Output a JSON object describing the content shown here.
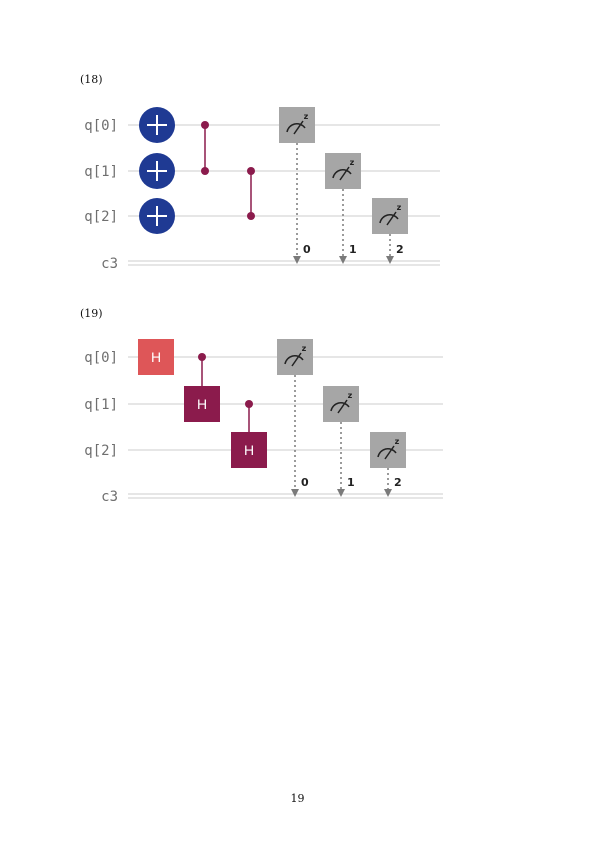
{
  "page_number": "19",
  "colors": {
    "wire": "#d7d7d7",
    "x_gate": "#1f3a93",
    "control": "#8b1b4c",
    "h_gate_plain": "#de5658",
    "h_gate_controlled": "#8b1b4c",
    "measure": "#a6a6a6",
    "measure_arrow": "#7a7a7a",
    "label": "#6f6f6f"
  },
  "circuits": [
    {
      "equation_label": "(18)",
      "qubit_labels": [
        "q[0]",
        "q[1]",
        "q[2]"
      ],
      "classical_label": "c3",
      "gates": [
        {
          "type": "x",
          "qubit": 0,
          "icon": "plus-icon"
        },
        {
          "type": "x",
          "qubit": 1,
          "icon": "plus-icon"
        },
        {
          "type": "x",
          "qubit": 2,
          "icon": "plus-icon"
        },
        {
          "type": "cz",
          "qubits": [
            0,
            1
          ]
        },
        {
          "type": "cz",
          "qubits": [
            1,
            2
          ]
        },
        {
          "type": "measure",
          "qubit": 0,
          "bit": "0",
          "basis": "z",
          "icon": "meter-icon"
        },
        {
          "type": "measure",
          "qubit": 1,
          "bit": "1",
          "basis": "z",
          "icon": "meter-icon"
        },
        {
          "type": "measure",
          "qubit": 2,
          "bit": "2",
          "basis": "z",
          "icon": "meter-icon"
        }
      ]
    },
    {
      "equation_label": "(19)",
      "qubit_labels": [
        "q[0]",
        "q[1]",
        "q[2]"
      ],
      "classical_label": "c3",
      "gates": [
        {
          "type": "h",
          "qubit": 0,
          "label": "H"
        },
        {
          "type": "ch",
          "control": 0,
          "target": 1,
          "label": "H"
        },
        {
          "type": "ch",
          "control": 1,
          "target": 2,
          "label": "H"
        },
        {
          "type": "measure",
          "qubit": 0,
          "bit": "0",
          "basis": "z",
          "icon": "meter-icon"
        },
        {
          "type": "measure",
          "qubit": 1,
          "bit": "1",
          "basis": "z",
          "icon": "meter-icon"
        },
        {
          "type": "measure",
          "qubit": 2,
          "bit": "2",
          "basis": "z",
          "icon": "meter-icon"
        }
      ]
    }
  ]
}
